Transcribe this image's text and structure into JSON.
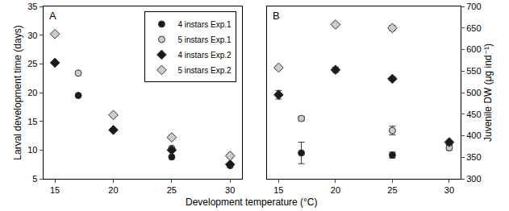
{
  "chart_data": [
    {
      "type": "scatter",
      "panel": "A",
      "xlabel": "Development temperature (°C)",
      "ylabel": "Larval development time (days)",
      "xlim": [
        14,
        31
      ],
      "xticks": [
        15,
        20,
        25,
        30
      ],
      "ylim": [
        5,
        35
      ],
      "yticks": [
        5,
        10,
        15,
        20,
        25,
        30,
        35
      ],
      "legend": "upper right",
      "series": [
        {
          "name": "4 instars Exp.1",
          "color": "#1a1a1a",
          "marker": "circle",
          "x": [
            17,
            25,
            30
          ],
          "values": [
            19.5,
            8.8,
            7.3
          ]
        },
        {
          "name": "5 instars Exp.1",
          "color": "#cccccc",
          "marker": "circle",
          "x": [
            17,
            25,
            30
          ],
          "values": [
            23.4,
            10.3,
            9.0
          ]
        },
        {
          "name": "4 instars Exp.2",
          "color": "#1a1a1a",
          "marker": "diamond",
          "x": [
            15,
            20,
            25,
            30
          ],
          "values": [
            25.2,
            13.5,
            10.0,
            7.5
          ]
        },
        {
          "name": "5 instars Exp.2",
          "color": "#cccccc",
          "marker": "diamond",
          "x": [
            15,
            20,
            25,
            30
          ],
          "values": [
            30.2,
            16.1,
            12.2,
            9.0
          ]
        }
      ]
    },
    {
      "type": "scatter",
      "panel": "B",
      "ylabel": "Juvenile DW (μg ind⁻¹)",
      "xlim": [
        14,
        31
      ],
      "xticks": [
        15,
        20,
        25,
        30
      ],
      "ylim": [
        300,
        700
      ],
      "yticks": [
        300,
        350,
        400,
        450,
        500,
        550,
        600,
        650,
        700
      ],
      "series": [
        {
          "name": "4 instars Exp.1",
          "color": "#1a1a1a",
          "marker": "circle",
          "x": [
            17,
            25,
            30
          ],
          "values": [
            360,
            355,
            382
          ],
          "error": [
            25,
            7,
            5
          ]
        },
        {
          "name": "5 instars Exp.1",
          "color": "#cccccc",
          "marker": "circle",
          "x": [
            17,
            25,
            30
          ],
          "values": [
            440,
            412,
            372
          ],
          "error": [
            5,
            10,
            6
          ]
        },
        {
          "name": "4 instars Exp.2",
          "color": "#1a1a1a",
          "marker": "diamond",
          "x": [
            15,
            20,
            25,
            30
          ],
          "values": [
            495,
            553,
            532,
            385
          ],
          "error": [
            10,
            6,
            4,
            4
          ]
        },
        {
          "name": "5 instars Exp.2",
          "color": "#cccccc",
          "marker": "diamond",
          "x": [
            15,
            20,
            25
          ],
          "values": [
            558,
            658,
            650
          ],
          "error": [
            4,
            4,
            6
          ]
        }
      ]
    }
  ]
}
